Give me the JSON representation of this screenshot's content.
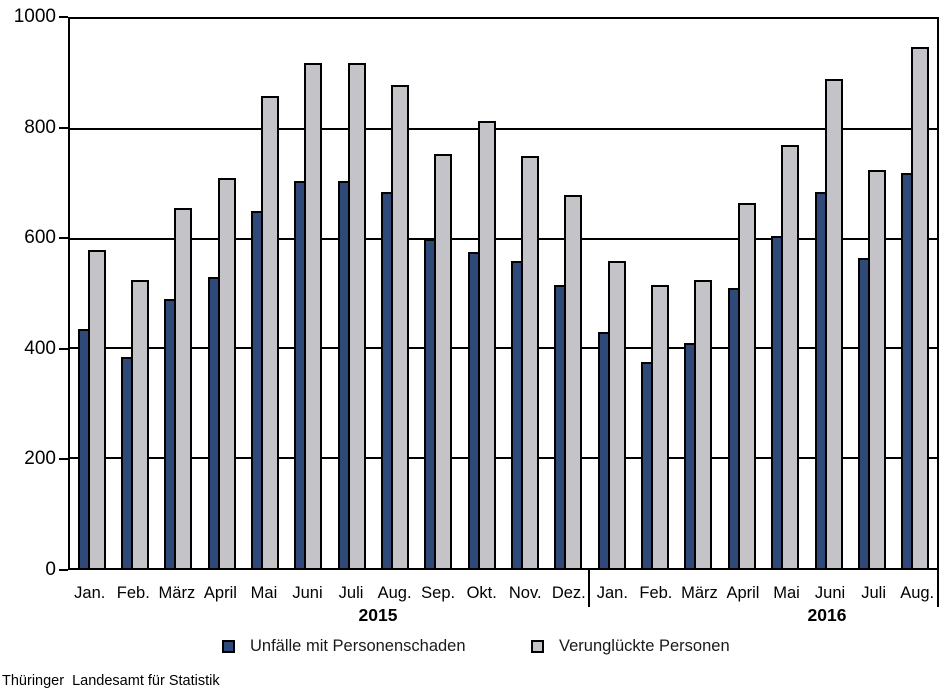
{
  "chart_data": {
    "type": "bar",
    "title": "",
    "xlabel": "",
    "ylabel": "",
    "ylim": [
      0,
      1000
    ],
    "yticks": [
      0,
      200,
      400,
      600,
      800,
      1000
    ],
    "grid": "horizontal",
    "legend_position": "bottom",
    "categories": [
      "Jan.",
      "Feb.",
      "März",
      "April",
      "Mai",
      "Juni",
      "Juli",
      "Aug.",
      "Sep.",
      "Okt.",
      "Nov.",
      "Dez.",
      "Jan.",
      "Feb.",
      "März",
      "April",
      "Mai",
      "Juni",
      "Juli",
      "Aug."
    ],
    "year_groups": [
      {
        "label": "2015",
        "months": 12
      },
      {
        "label": "2016",
        "months": 8
      }
    ],
    "series": [
      {
        "name": "Unfälle mit Personenschaden",
        "color": "#2F4A78",
        "values": [
          435,
          385,
          490,
          530,
          650,
          705,
          705,
          685,
          600,
          575,
          560,
          515,
          430,
          375,
          410,
          510,
          605,
          685,
          565,
          720
        ]
      },
      {
        "name": "Verunglückte Personen",
        "color": "#C4C4C8",
        "values": [
          580,
          525,
          655,
          710,
          860,
          920,
          920,
          880,
          755,
          815,
          750,
          680,
          560,
          515,
          525,
          665,
          770,
          890,
          725,
          950
        ]
      }
    ]
  },
  "footer": {
    "source": "Thüringer  Landesamt für Statistik"
  }
}
